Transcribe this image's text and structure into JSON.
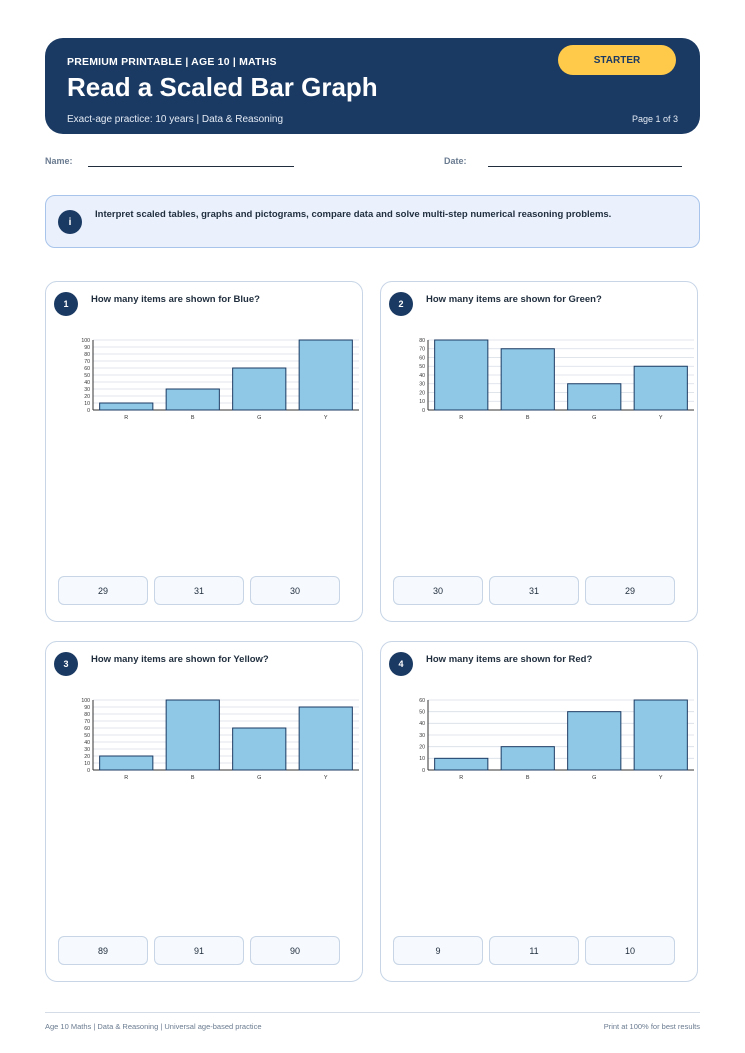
{
  "header": {
    "eyebrow": "PREMIUM PRINTABLE | AGE 10 | MATHS",
    "title": "Read a Scaled Bar Graph",
    "subtitle": "Exact-age practice: 10 years | Data & Reasoning",
    "page": "Page 1 of 3",
    "badge": "STARTER"
  },
  "fields": {
    "name_label": "Name:",
    "date_label": "Date:"
  },
  "info": {
    "icon": "i",
    "text": "Interpret scaled tables, graphs and pictograms, compare data and solve multi-step numerical reasoning problems."
  },
  "colors": {
    "header": "#1b3a63",
    "badge": "#ffc94a",
    "bar_fill": "#8ec8e6",
    "bar_stroke": "#1b3a63"
  },
  "questions": [
    {
      "number": "1",
      "text": "How many items are shown for Blue?",
      "answers": [
        "29",
        "31",
        "30"
      ]
    },
    {
      "number": "2",
      "text": "How many items are shown for Green?",
      "answers": [
        "30",
        "31",
        "29"
      ]
    },
    {
      "number": "3",
      "text": "How many items are shown for Yellow?",
      "answers": [
        "89",
        "91",
        "90"
      ]
    },
    {
      "number": "4",
      "text": "How many items are shown for Red?",
      "answers": [
        "9",
        "11",
        "10"
      ]
    }
  ],
  "chart_data": [
    {
      "type": "bar",
      "categories": [
        "R",
        "B",
        "G",
        "Y"
      ],
      "values": [
        10,
        30,
        60,
        100
      ],
      "ylim": [
        0,
        100
      ],
      "yticks": [
        0,
        10,
        20,
        30,
        40,
        50,
        60,
        70,
        80,
        90,
        100
      ],
      "grid": true
    },
    {
      "type": "bar",
      "categories": [
        "R",
        "B",
        "G",
        "Y"
      ],
      "values": [
        80,
        70,
        30,
        50
      ],
      "ylim": [
        0,
        80
      ],
      "yticks": [
        0,
        10,
        20,
        30,
        40,
        50,
        60,
        70,
        80
      ],
      "grid": true
    },
    {
      "type": "bar",
      "categories": [
        "R",
        "B",
        "G",
        "Y"
      ],
      "values": [
        20,
        100,
        60,
        90
      ],
      "ylim": [
        0,
        100
      ],
      "yticks": [
        0,
        10,
        20,
        30,
        40,
        50,
        60,
        70,
        80,
        90,
        100
      ],
      "grid": true
    },
    {
      "type": "bar",
      "categories": [
        "R",
        "B",
        "G",
        "Y"
      ],
      "values": [
        10,
        20,
        50,
        60
      ],
      "ylim": [
        0,
        60
      ],
      "yticks": [
        0,
        10,
        20,
        30,
        40,
        50,
        60
      ],
      "grid": true
    }
  ],
  "footer": {
    "left": "Age 10 Maths | Data & Reasoning | Universal age-based practice",
    "right": "Print at 100% for best results"
  }
}
